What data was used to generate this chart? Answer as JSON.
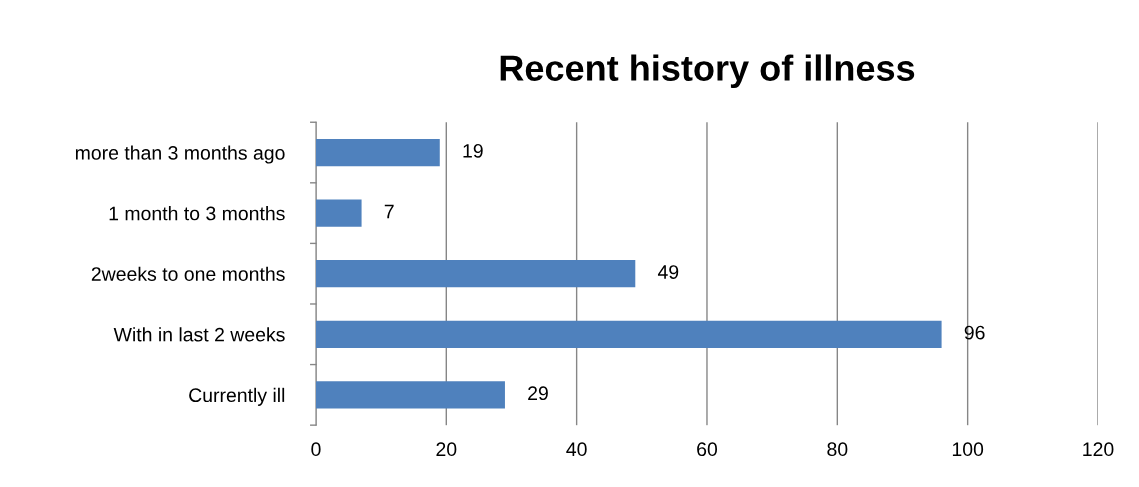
{
  "chart_data": {
    "type": "bar",
    "orientation": "horizontal",
    "title": "Recent history of illness",
    "categories": [
      "more than 3 months ago",
      "1 month to 3 months",
      "2weeks to one months",
      "With in last 2 weeks",
      "Currently ill"
    ],
    "values": [
      19,
      7,
      49,
      96,
      29
    ],
    "color": "#4f81bd",
    "xlim": [
      0,
      120
    ],
    "xticks": [
      0,
      20,
      40,
      60,
      80,
      100,
      120
    ],
    "grid": "x",
    "data_labels": true
  }
}
